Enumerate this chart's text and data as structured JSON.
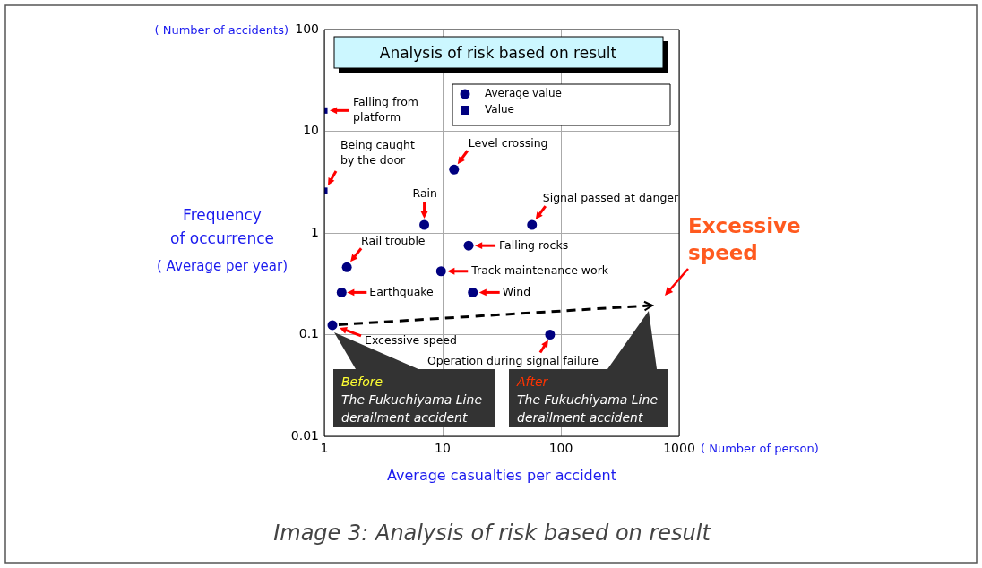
{
  "chart_data": {
    "type": "scatter",
    "title": "Analysis of risk based on result",
    "xlabel": "Average casualties per accident",
    "ylabel": "Frequency of occurrence",
    "log": "xy",
    "xlim": [
      1,
      1000
    ],
    "ylim": [
      0.01,
      100
    ],
    "xticks": [
      1,
      10,
      100,
      1000
    ],
    "yticks": [
      0.01,
      0.1,
      1,
      10,
      100
    ],
    "grid": true,
    "legend": "top right",
    "series": [
      {
        "name": "Average value",
        "color": "#000080",
        "marker": "circle",
        "x": [
          12.5,
          7,
          57,
          16.6,
          1.55,
          9.7,
          1.4,
          18,
          1.17,
          81
        ],
        "values": [
          4.2,
          1.2,
          1.2,
          0.75,
          0.46,
          0.42,
          0.26,
          0.26,
          0.124,
          0.1
        ]
      },
      {
        "name": "Value",
        "color": "#000080",
        "marker": "square",
        "x": [
          1,
          1
        ],
        "values": [
          16,
          2.6
        ]
      }
    ],
    "annotations": [
      {
        "text": "Falling from platform",
        "x": 1,
        "y": 16
      },
      {
        "text": "Being caught by the door",
        "x": 1,
        "y": 2.6
      },
      {
        "text": "Level crossing",
        "x": 12.5,
        "y": 4.2
      },
      {
        "text": "Rain",
        "x": 7,
        "y": 1.2
      },
      {
        "text": "Signal passed at danger",
        "x": 57,
        "y": 1.2
      },
      {
        "text": "Falling rocks",
        "x": 16.6,
        "y": 0.75
      },
      {
        "text": "Rail trouble",
        "x": 1.55,
        "y": 0.46
      },
      {
        "text": "Track maintenance work",
        "x": 9.7,
        "y": 0.42
      },
      {
        "text": "Earthquake",
        "x": 1.4,
        "y": 0.26
      },
      {
        "text": "Wind",
        "x": 18,
        "y": 0.26
      },
      {
        "text": "Excessive speed",
        "x": 1.17,
        "y": 0.124
      },
      {
        "text": "Operation during signal failure",
        "x": 81,
        "y": 0.1
      },
      "Excessive speed",
      "Before",
      "The Fukuchiyama Line derailment accident",
      "After",
      "The Fukuchiyama Line derailment accident",
      "( Number of accidents)",
      "( Number of person)",
      "( Average per year)",
      "Image 3: Analysis of risk based on result"
    ]
  }
}
